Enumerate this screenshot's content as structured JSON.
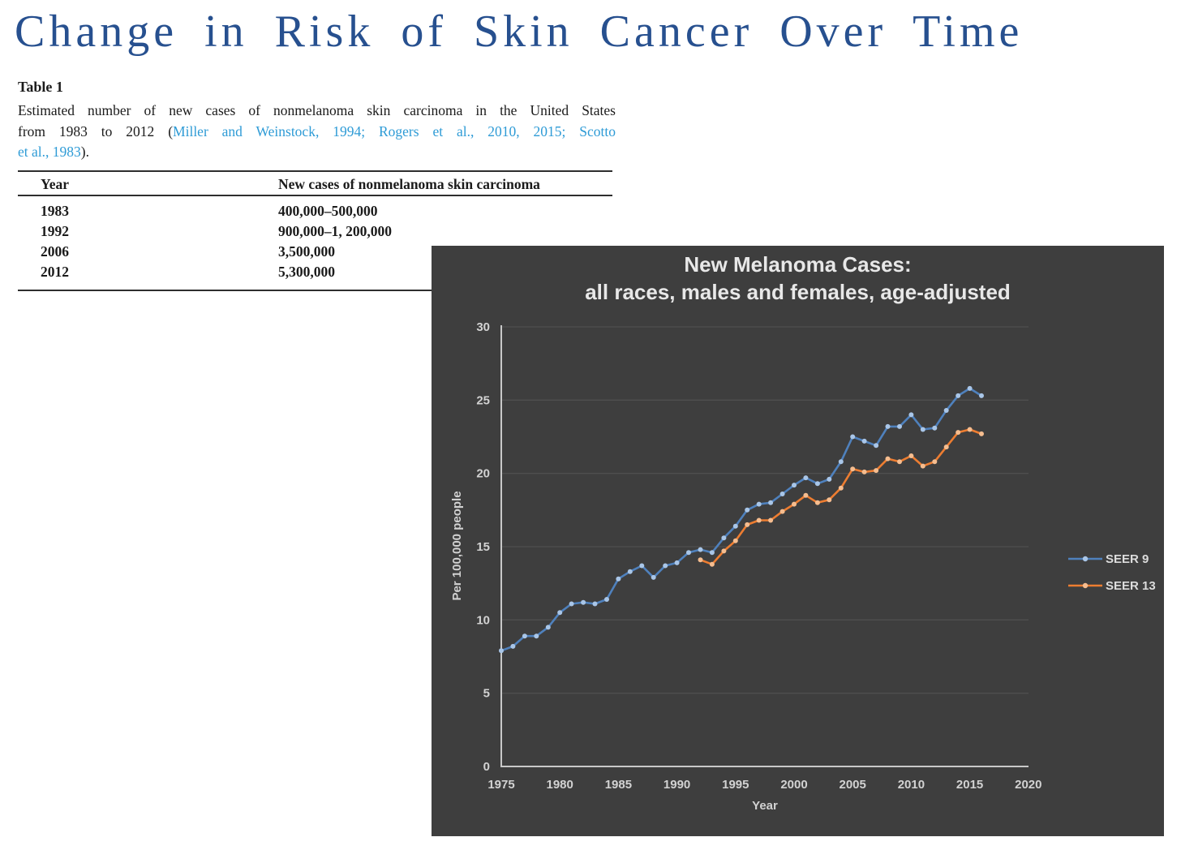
{
  "page": {
    "title": "Change in Risk of Skin Cancer Over Time",
    "title_color": "#27508f"
  },
  "table_section": {
    "label": "Table 1",
    "link_color": "#2e9bd6",
    "caption_lines": [
      [
        {
          "text": "Estimated number of new cases of nonmelanoma skin carcinoma in the United States"
        }
      ],
      [
        {
          "text": "from 1983 to 2012 ("
        },
        {
          "text": "Miller and Weinstock, 1994; Rogers et al., 2010, 2015; Scotto",
          "link": true
        }
      ],
      [
        {
          "text": "et al., 1983",
          "link": true
        },
        {
          "text": ")."
        }
      ]
    ],
    "columns": [
      "Year",
      "New cases of nonmelanoma skin carcinoma"
    ],
    "rows": [
      [
        "1983",
        "400,000–500,000"
      ],
      [
        "1992",
        "900,000–1, 200,000"
      ],
      [
        "2006",
        "3,500,000"
      ],
      [
        "2012",
        "5,300,000"
      ]
    ]
  },
  "chart_data": {
    "type": "line",
    "title": "New Melanoma Cases:",
    "subtitle": "all races, males and females, age-adjusted",
    "xlabel": "Year",
    "ylabel": "Per 100,000  people",
    "xlim": [
      1975,
      2020
    ],
    "ylim": [
      0,
      30
    ],
    "xtick_interval": 5,
    "ytick_interval": 5,
    "grid": "horizontal",
    "legend_position": "right-outside",
    "colors": {
      "background": "#3e3e3e",
      "gridline": "#4f4f4f",
      "axis": "#c8c8c8",
      "tick_text": "#d2d2d2"
    },
    "series": [
      {
        "name": "SEER 9",
        "color": "#4f81bd",
        "marker_color": "#a9c6e8",
        "x_start": 1975,
        "values": [
          7.9,
          8.2,
          8.9,
          8.9,
          9.5,
          10.5,
          11.1,
          11.2,
          11.1,
          11.4,
          12.8,
          13.3,
          13.7,
          12.9,
          13.7,
          13.9,
          14.6,
          14.8,
          14.6,
          15.6,
          16.4,
          17.5,
          17.9,
          18.0,
          18.6,
          19.2,
          19.7,
          19.3,
          19.6,
          20.8,
          22.5,
          22.2,
          21.9,
          23.2,
          23.2,
          24.0,
          23.0,
          23.1,
          24.3,
          25.3,
          25.8,
          25.3
        ]
      },
      {
        "name": "SEER 13",
        "color": "#ed7d31",
        "marker_color": "#f6bd8f",
        "x_start": 1992,
        "values": [
          14.1,
          13.8,
          14.7,
          15.4,
          16.5,
          16.8,
          16.8,
          17.4,
          17.9,
          18.5,
          18.0,
          18.2,
          19.0,
          20.3,
          20.1,
          20.2,
          21.0,
          20.8,
          21.2,
          20.5,
          20.8,
          21.8,
          22.8,
          23.0,
          22.7
        ]
      }
    ]
  }
}
